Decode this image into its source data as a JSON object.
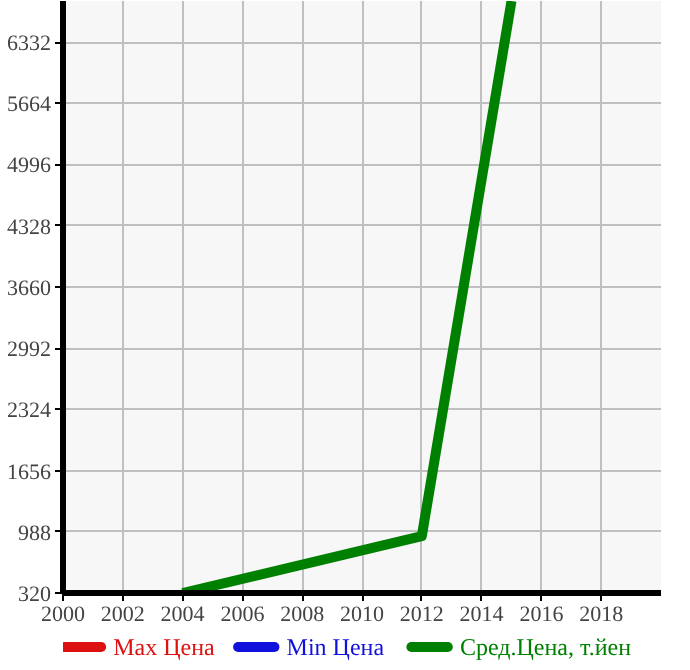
{
  "chart_data": {
    "type": "line",
    "x": [
      2004,
      2012,
      2015
    ],
    "series": [
      {
        "name": "Max Цена",
        "color": "#dd1111",
        "values": [
          null,
          null,
          null
        ]
      },
      {
        "name": "Min Цена",
        "color": "#1111dd",
        "values": [
          null,
          null,
          null
        ]
      },
      {
        "name": "Сред.Цена, т.йен",
        "color": "#008000",
        "values": [
          320,
          940,
          6780
        ]
      }
    ],
    "xlim": [
      2000,
      2020
    ],
    "xticks": [
      2000,
      2002,
      2004,
      2006,
      2008,
      2010,
      2012,
      2014,
      2016,
      2018
    ],
    "ylim": [
      320,
      6780
    ],
    "yticks": [
      320,
      988,
      1656,
      2324,
      2992,
      3660,
      4328,
      4996,
      5664,
      6332
    ],
    "grid": true,
    "legend": "bottom",
    "marker": "none",
    "line_style": "solid"
  }
}
